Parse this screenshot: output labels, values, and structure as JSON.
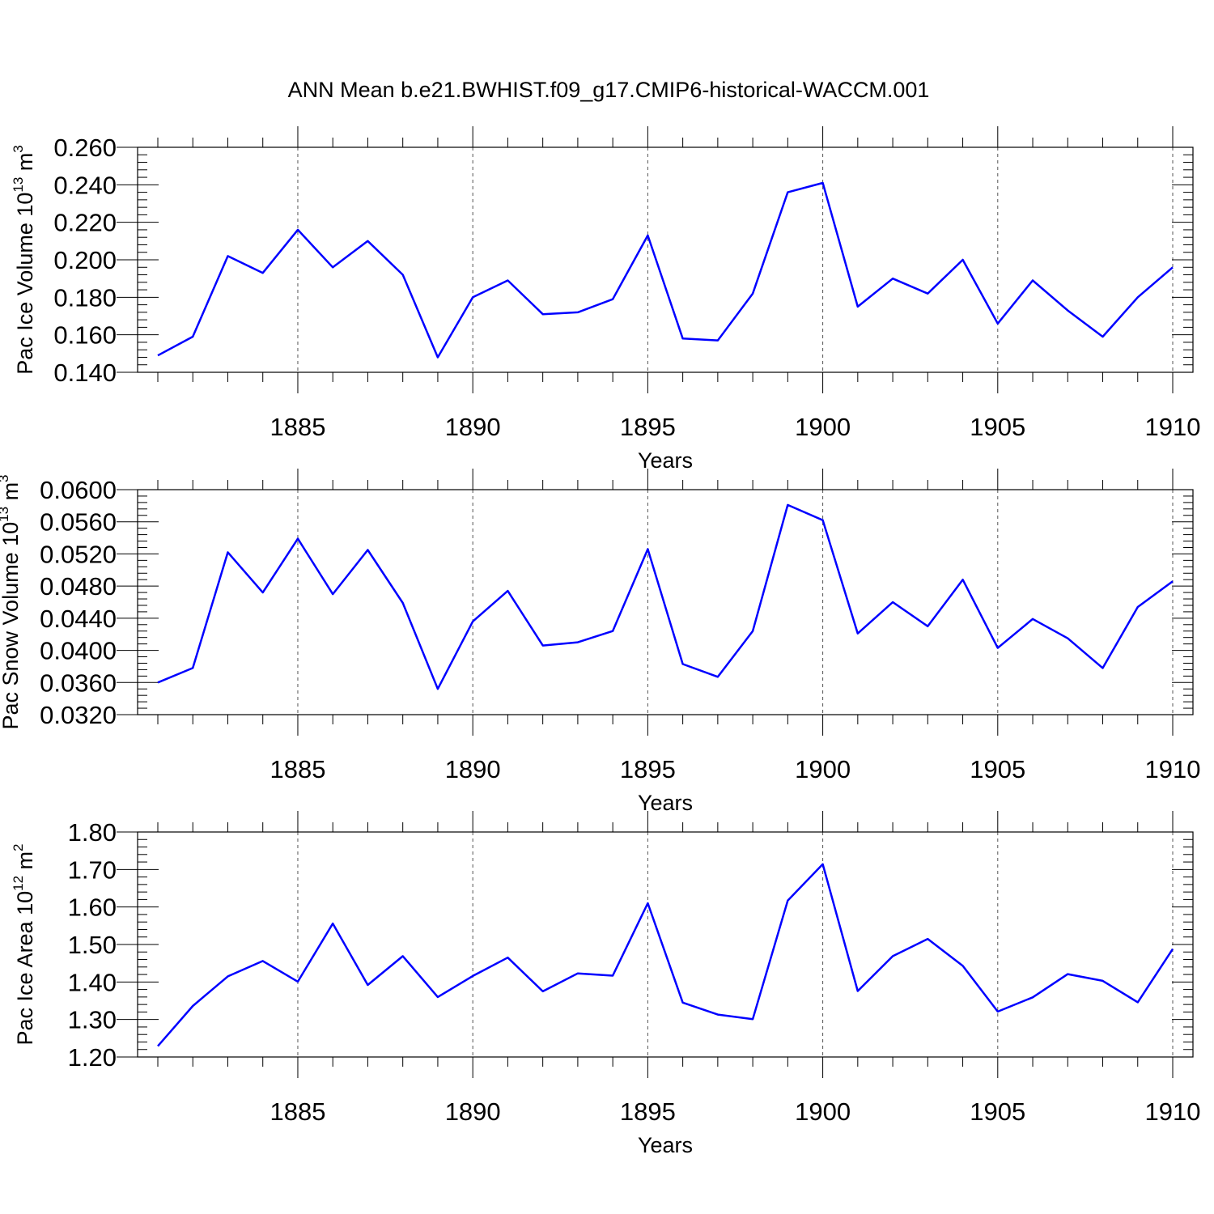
{
  "title": "ANN Mean b.e21.BWHIST.f09_g17.CMIP6-historical-WACCM.001",
  "colors": {
    "line": "#0000ff",
    "axis": "#000000",
    "grid": "#555555"
  },
  "chart_data": [
    {
      "type": "line",
      "ylabel_main": "Pac Ice Volume 10",
      "ylabel_exp": "13",
      "ylabel_unit": " m",
      "ylabel_unit_exp": "3",
      "xlabel": "Years",
      "xlim": [
        1881,
        1910
      ],
      "ylim": [
        0.14,
        0.26
      ],
      "yticks": [
        "0.140",
        "0.160",
        "0.180",
        "0.200",
        "0.220",
        "0.240",
        "0.260"
      ],
      "xticks": [
        "1885",
        "1890",
        "1895",
        "1900",
        "1905",
        "1910"
      ],
      "grid": "vertical dashed at major x ticks",
      "x": [
        1881,
        1882,
        1883,
        1884,
        1885,
        1886,
        1887,
        1888,
        1889,
        1890,
        1891,
        1892,
        1893,
        1894,
        1895,
        1896,
        1897,
        1898,
        1899,
        1900,
        1901,
        1902,
        1903,
        1904,
        1905,
        1906,
        1907,
        1908,
        1909,
        1910
      ],
      "series": [
        {
          "values": [
            0.149,
            0.159,
            0.202,
            0.193,
            0.216,
            0.196,
            0.21,
            0.192,
            0.148,
            0.18,
            0.189,
            0.171,
            0.172,
            0.179,
            0.213,
            0.158,
            0.157,
            0.182,
            0.236,
            0.241,
            0.175,
            0.19,
            0.182,
            0.2,
            0.166,
            0.189,
            0.173,
            0.159,
            0.18,
            0.196
          ]
        }
      ]
    },
    {
      "type": "line",
      "ylabel_main": "Pac Snow Volume 10",
      "ylabel_exp": "13",
      "ylabel_unit": " m",
      "ylabel_unit_exp": "3",
      "xlabel": "Years",
      "xlim": [
        1881,
        1910
      ],
      "ylim": [
        0.032,
        0.06
      ],
      "yticks": [
        "0.0320",
        "0.0360",
        "0.0400",
        "0.0440",
        "0.0480",
        "0.0520",
        "0.0560",
        "0.0600"
      ],
      "xticks": [
        "1885",
        "1890",
        "1895",
        "1900",
        "1905",
        "1910"
      ],
      "grid": "vertical dashed at major x ticks",
      "x": [
        1881,
        1882,
        1883,
        1884,
        1885,
        1886,
        1887,
        1888,
        1889,
        1890,
        1891,
        1892,
        1893,
        1894,
        1895,
        1896,
        1897,
        1898,
        1899,
        1900,
        1901,
        1902,
        1903,
        1904,
        1905,
        1906,
        1907,
        1908,
        1909,
        1910
      ],
      "series": [
        {
          "values": [
            0.036,
            0.0378,
            0.0522,
            0.0472,
            0.0539,
            0.047,
            0.0525,
            0.0459,
            0.0352,
            0.0436,
            0.0474,
            0.0406,
            0.041,
            0.0424,
            0.0526,
            0.0383,
            0.0367,
            0.0424,
            0.0581,
            0.0562,
            0.0421,
            0.046,
            0.043,
            0.0488,
            0.0403,
            0.0439,
            0.0415,
            0.0378,
            0.0454,
            0.0486
          ]
        }
      ]
    },
    {
      "type": "line",
      "ylabel_main": "Pac Ice Area 10",
      "ylabel_exp": "12",
      "ylabel_unit": " m",
      "ylabel_unit_exp": "2",
      "xlabel": "Years",
      "xlim": [
        1881,
        1910
      ],
      "ylim": [
        1.2,
        1.8
      ],
      "yticks": [
        "1.20",
        "1.30",
        "1.40",
        "1.50",
        "1.60",
        "1.70",
        "1.80"
      ],
      "xticks": [
        "1885",
        "1890",
        "1895",
        "1900",
        "1905",
        "1910"
      ],
      "grid": "vertical dashed at major x ticks",
      "x": [
        1881,
        1882,
        1883,
        1884,
        1885,
        1886,
        1887,
        1888,
        1889,
        1890,
        1891,
        1892,
        1893,
        1894,
        1895,
        1896,
        1897,
        1898,
        1899,
        1900,
        1901,
        1902,
        1903,
        1904,
        1905,
        1906,
        1907,
        1908,
        1909,
        1910
      ],
      "series": [
        {
          "values": [
            1.229,
            1.336,
            1.415,
            1.456,
            1.401,
            1.556,
            1.392,
            1.469,
            1.36,
            1.416,
            1.465,
            1.375,
            1.423,
            1.417,
            1.61,
            1.345,
            1.313,
            1.301,
            1.617,
            1.714,
            1.376,
            1.469,
            1.515,
            1.443,
            1.321,
            1.359,
            1.421,
            1.403,
            1.346,
            1.488
          ]
        }
      ]
    }
  ]
}
